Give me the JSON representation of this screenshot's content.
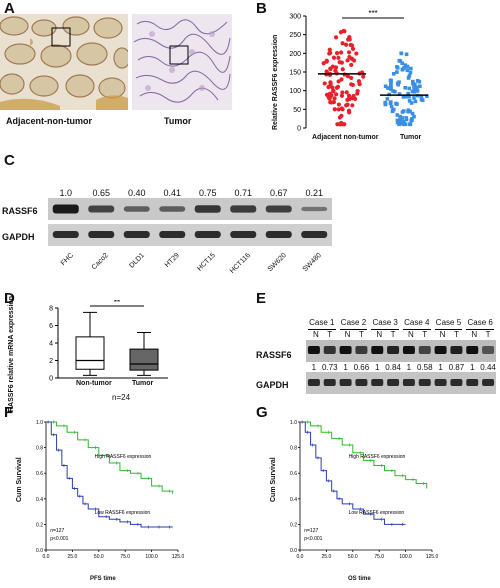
{
  "panelA": {
    "label": "A",
    "caption_left": "Adjacent-non-tumor",
    "caption_right": "Tumor"
  },
  "panelB": {
    "label": "B",
    "ylabel": "Relative RASSF6 expression",
    "yticks": [
      "0",
      "50",
      "100",
      "150",
      "200",
      "250",
      "300"
    ],
    "sig": "***",
    "groups": [
      "Adjacent non-tumor",
      "Tumor"
    ],
    "colors": {
      "nontumor": "#e8202a",
      "tumor": "#3a8fe0"
    }
  },
  "panelC": {
    "label": "C",
    "values": [
      "1.0",
      "0.65",
      "0.40",
      "0.41",
      "0.75",
      "0.71",
      "0.67",
      "0.21"
    ],
    "lanes": [
      "FHC",
      "Caco2",
      "DLD1",
      "HT29",
      "HCT15",
      "HCT116",
      "SW620",
      "SW480"
    ],
    "row1": "RASSF6",
    "row2": "GAPDH"
  },
  "panelD": {
    "label": "D",
    "ylabel": "RASSF6 relative mRNA expression",
    "yticks": [
      "0",
      "2",
      "4",
      "6",
      "8"
    ],
    "groups": [
      "Non-tumor",
      "Tumor"
    ],
    "sig": "**",
    "n": "n=24"
  },
  "panelE": {
    "label": "E",
    "cases": [
      "Case 1",
      "Case 2",
      "Case 3",
      "Case 4",
      "Case 5",
      "Case 6"
    ],
    "nt": [
      "N",
      "T"
    ],
    "row1": "RASSF6",
    "row2": "GAPDH",
    "ratios": [
      "1",
      "0.73",
      "1",
      "0.66",
      "1",
      "0.84",
      "1",
      "0.58",
      "1",
      "0.87",
      "1",
      "0.44"
    ]
  },
  "panelF": {
    "label": "F",
    "ylabel": "Cum Survival",
    "xlabel": "PFS time",
    "high": "High RASSF6 expression",
    "low": "Low RASSF6 expression",
    "n": "n=127",
    "p": "p<0.001",
    "xticks": [
      "0.0",
      "25.0",
      "50.0",
      "75.0",
      "100.0",
      "125.0"
    ],
    "yticks": [
      "0.0",
      "0.2",
      "0.4",
      "0.6",
      "0.8",
      "1.0"
    ]
  },
  "panelG": {
    "label": "G",
    "ylabel": "Cum Survival",
    "xlabel": "OS time",
    "high": "High RASSF6 expression",
    "low": "Low RASSF6 expression",
    "n": "n=127",
    "p": "p<0.001",
    "xticks": [
      "0.0",
      "25.0",
      "50.0",
      "75.0",
      "100.0",
      "125.0"
    ],
    "yticks": [
      "0.0",
      "0.2",
      "0.4",
      "0.6",
      "0.8",
      "1.0"
    ]
  },
  "chart_data": [
    {
      "type": "scatter",
      "panel": "B",
      "ylabel": "Relative RASSF6 expression",
      "ylim": [
        0,
        300
      ],
      "categories": [
        "Adjacent non-tumor",
        "Tumor"
      ],
      "medians": [
        145,
        88
      ],
      "ranges": [
        [
          10,
          260
        ],
        [
          10,
          200
        ]
      ]
    },
    {
      "type": "box",
      "panel": "D",
      "ylabel": "RASSF6 relative mRNA expression",
      "ylim": [
        0,
        8
      ],
      "categories": [
        "Non-tumor",
        "Tumor"
      ],
      "boxes": [
        {
          "min": 0.3,
          "q1": 1.0,
          "median": 2.0,
          "q3": 4.7,
          "max": 7.5
        },
        {
          "min": 0.3,
          "q1": 0.9,
          "median": 1.6,
          "q3": 3.3,
          "max": 5.2
        }
      ]
    },
    {
      "type": "line",
      "panel": "F",
      "xlabel": "PFS time",
      "ylabel": "Cum Survival",
      "xlim": [
        0,
        125
      ],
      "ylim": [
        0,
        1
      ],
      "series": [
        {
          "name": "High RASSF6 expression",
          "color": "#2db82d",
          "x": [
            0,
            10,
            20,
            30,
            40,
            50,
            60,
            70,
            80,
            90,
            100,
            110,
            120
          ],
          "y": [
            1.0,
            0.97,
            0.92,
            0.86,
            0.8,
            0.74,
            0.68,
            0.62,
            0.6,
            0.56,
            0.5,
            0.46,
            0.44
          ]
        },
        {
          "name": "Low RASSF6 expression",
          "color": "#2a3fb0",
          "x": [
            0,
            5,
            10,
            15,
            20,
            25,
            30,
            35,
            40,
            50,
            60,
            70,
            80,
            90,
            100,
            110,
            120
          ],
          "y": [
            1.0,
            0.9,
            0.78,
            0.66,
            0.56,
            0.48,
            0.42,
            0.36,
            0.32,
            0.26,
            0.24,
            0.22,
            0.2,
            0.18,
            0.18,
            0.18,
            0.18
          ]
        }
      ]
    },
    {
      "type": "line",
      "panel": "G",
      "xlabel": "OS time",
      "ylabel": "Cum Survival",
      "xlim": [
        0,
        125
      ],
      "ylim": [
        0,
        1
      ],
      "series": [
        {
          "name": "High RASSF6 expression",
          "color": "#2db82d",
          "x": [
            0,
            10,
            20,
            30,
            40,
            50,
            60,
            70,
            80,
            90,
            100,
            110,
            120
          ],
          "y": [
            1.0,
            0.97,
            0.92,
            0.87,
            0.82,
            0.76,
            0.7,
            0.66,
            0.62,
            0.58,
            0.55,
            0.52,
            0.48
          ]
        },
        {
          "name": "Low RASSF6 expression",
          "color": "#2a3fb0",
          "x": [
            0,
            5,
            10,
            15,
            20,
            25,
            30,
            35,
            40,
            50,
            60,
            70,
            80,
            90,
            100
          ],
          "y": [
            1.0,
            0.92,
            0.82,
            0.72,
            0.62,
            0.54,
            0.46,
            0.4,
            0.36,
            0.32,
            0.28,
            0.24,
            0.2,
            0.2,
            0.2
          ]
        }
      ]
    }
  ]
}
